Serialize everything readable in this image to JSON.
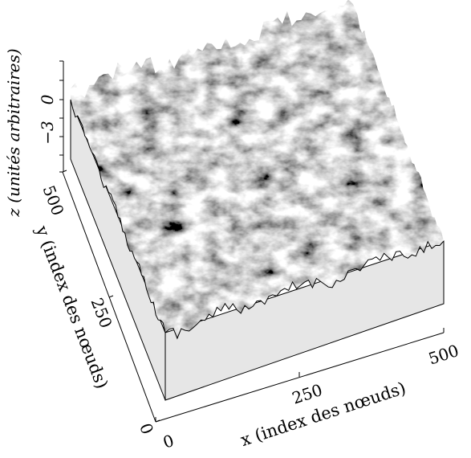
{
  "chart_data": {
    "type": "surface",
    "description_of_data": "random rough surface height field z(x,y) over a 500x500 node grid, rendered as 3D shaded relief",
    "xlabel": "x (index des nœuds)",
    "ylabel": "y (index des nœuds)",
    "zlabel": "z (unités arbitraires)",
    "xlim": [
      0,
      500
    ],
    "ylim": [
      0,
      500
    ],
    "zlim": [
      -5,
      3
    ],
    "x_ticks": [
      "0",
      "250",
      "500"
    ],
    "y_ticks": [
      "0",
      "250",
      "500"
    ],
    "z_ticks": [
      "0",
      "−3"
    ],
    "grid": false,
    "legend": "none",
    "colors": {
      "surface_dark": "#3a3a3a",
      "surface_light": "#d8d8d8",
      "box_face": "#e6e6e6",
      "axis": "#000000"
    }
  }
}
